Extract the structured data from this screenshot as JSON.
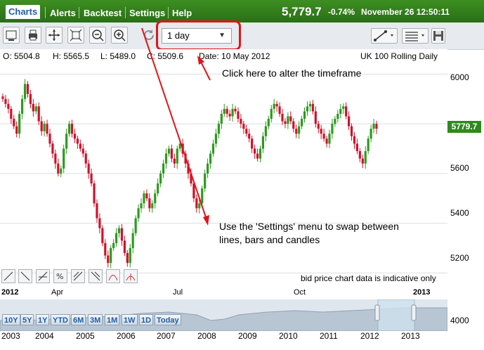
{
  "tabs": [
    "Charts",
    "Alerts",
    "Backtest",
    "Settings",
    "Help"
  ],
  "quote": {
    "price": "5,779.7",
    "change": "-0.74%",
    "datetime": "November 26 12:50:11"
  },
  "toolbar": {
    "timeframe": "1 day",
    "icons": [
      "chart-type-icon",
      "print-icon",
      "pan-icon",
      "fit-icon",
      "zoom-out-icon",
      "zoom-in-icon",
      "refresh-icon"
    ]
  },
  "ohlc": {
    "o": "O: 5504.8",
    "h": "H: 5565.5",
    "l": "L: 5489.0",
    "c": "C: 5509.6",
    "date": "Date: 10 May 2012"
  },
  "instrument": "UK 100 Rolling Daily",
  "annotations": {
    "timeframe": "Click here to alter the timeframe",
    "settings_line1": "Use the 'Settings' menu to swap between",
    "settings_line2": "lines, bars and candles"
  },
  "disclaimer": "bid price chart data is indicative only",
  "last_price_tag": "5779.7",
  "nav": {
    "buttons": [
      "10Y",
      "5Y",
      "1Y",
      "YTD",
      "6M",
      "3M",
      "1M",
      "1W",
      "1D",
      "Today"
    ],
    "ylabel": "4000"
  },
  "chart_data": {
    "type": "candlestick",
    "y_ticks": [
      "6000",
      "5800",
      "5600",
      "5400",
      "5200"
    ],
    "ylim": [
      5150,
      6100
    ],
    "x_ticks": [
      "2012",
      "Apr",
      "Jul",
      "Oct",
      "2013"
    ],
    "nav_years": [
      "2003",
      "2004",
      "2005",
      "2006",
      "2007",
      "2008",
      "2009",
      "2010",
      "2011",
      "2012",
      "2013"
    ],
    "closes": [
      5900,
      5880,
      5860,
      5820,
      5790,
      5760,
      5840,
      5900,
      5960,
      5920,
      5880,
      5850,
      5870,
      5810,
      5770,
      5800,
      5760,
      5720,
      5680,
      5640,
      5600,
      5620,
      5700,
      5760,
      5800,
      5760,
      5740,
      5720,
      5700,
      5680,
      5640,
      5600,
      5560,
      5480,
      5420,
      5380,
      5320,
      5270,
      5240,
      5300,
      5320,
      5360,
      5380,
      5330,
      5280,
      5240,
      5300,
      5360,
      5420,
      5460,
      5480,
      5520,
      5500,
      5460,
      5480,
      5520,
      5560,
      5600,
      5640,
      5680,
      5700,
      5660,
      5640,
      5700,
      5720,
      5680,
      5640,
      5600,
      5560,
      5500,
      5460,
      5480,
      5540,
      5600,
      5640,
      5680,
      5720,
      5760,
      5800,
      5840,
      5860,
      5840,
      5830,
      5860,
      5850,
      5820,
      5800,
      5780,
      5760,
      5740,
      5700,
      5680,
      5660,
      5700,
      5750,
      5790,
      5820,
      5860,
      5880,
      5870,
      5840,
      5810,
      5800,
      5830,
      5810,
      5780,
      5760,
      5790,
      5820,
      5850,
      5870,
      5880,
      5850,
      5800,
      5780,
      5760,
      5740,
      5720,
      5760,
      5800,
      5820,
      5840,
      5860,
      5870,
      5830,
      5790,
      5750,
      5720,
      5690,
      5660,
      5640,
      5690,
      5740,
      5780,
      5800,
      5780
    ]
  }
}
